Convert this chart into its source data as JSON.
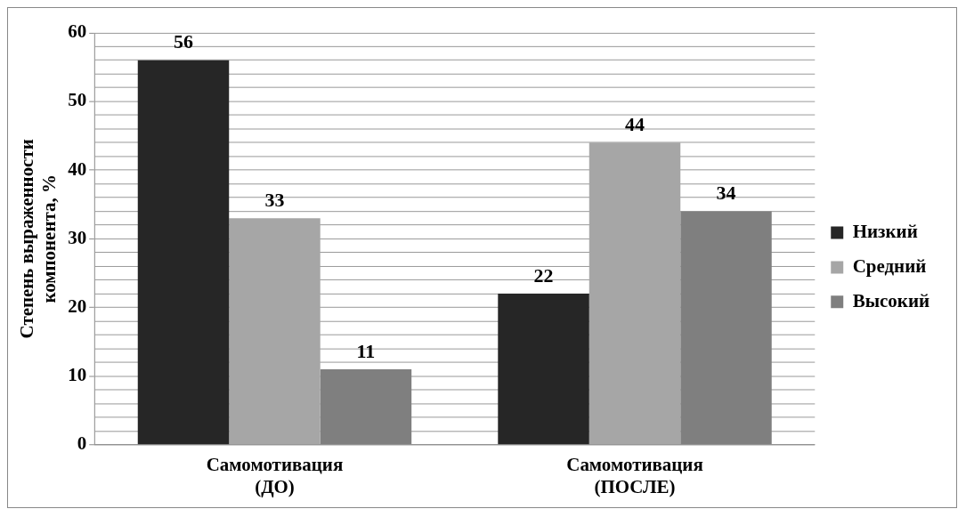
{
  "chart_data": {
    "type": "bar",
    "ylabel": "Степень выраженности компонента, %",
    "categories": [
      "Самомотивация (ДО)",
      "Самомотивация (ПОСЛЕ)"
    ],
    "series": [
      {
        "name": "Низкий",
        "color": "#262626",
        "values": [
          56,
          22
        ]
      },
      {
        "name": "Средний",
        "color": "#a6a6a6",
        "values": [
          33,
          44
        ]
      },
      {
        "name": "Высокий",
        "color": "#7f7f7f",
        "values": [
          11,
          34
        ]
      }
    ],
    "ylim": [
      0,
      60
    ],
    "yticks": [
      0,
      {
        "value": 2,
        "label": null
      },
      {
        "value": 4,
        "label": null
      },
      {
        "value": 6,
        "label": null
      },
      {
        "value": 8,
        "label": null
      },
      10,
      {
        "value": 12,
        "label": null
      },
      {
        "value": 14,
        "label": null
      },
      {
        "value": 16,
        "label": null
      },
      {
        "value": 18,
        "label": null
      },
      20,
      {
        "value": 22,
        "label": null
      },
      {
        "value": 24,
        "label": null
      },
      {
        "value": 26,
        "label": null
      },
      {
        "value": 28,
        "label": null
      },
      30,
      {
        "value": 32,
        "label": null
      },
      {
        "value": 34,
        "label": null
      },
      {
        "value": 36,
        "label": null
      },
      {
        "value": 38,
        "label": null
      },
      40,
      {
        "value": 42,
        "label": null
      },
      {
        "value": 44,
        "label": null
      },
      {
        "value": 46,
        "label": null
      },
      {
        "value": 48,
        "label": null
      },
      50,
      {
        "value": 52,
        "label": null
      },
      {
        "value": 54,
        "label": null
      },
      {
        "value": 56,
        "label": null
      },
      {
        "value": 58,
        "label": null
      },
      60
    ],
    "grid": "y",
    "legend": "right",
    "data_labels": true
  }
}
